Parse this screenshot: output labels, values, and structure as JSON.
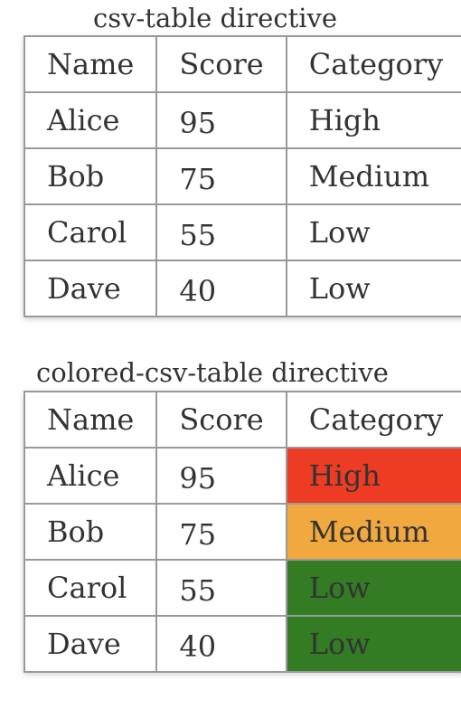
{
  "sections": [
    {
      "caption": "csv-table directive",
      "headers": [
        "Name",
        "Score",
        "Category"
      ],
      "rows": [
        {
          "name": "Alice",
          "score": "95",
          "category": "High"
        },
        {
          "name": "Bob",
          "score": "75",
          "category": "Medium"
        },
        {
          "name": "Carol",
          "score": "55",
          "category": "Low"
        },
        {
          "name": "Dave",
          "score": "40",
          "category": "Low"
        }
      ]
    },
    {
      "caption": "colored-csv-table directive",
      "headers": [
        "Name",
        "Score",
        "Category"
      ],
      "rows": [
        {
          "name": "Alice",
          "score": "95",
          "category": "High",
          "color": "#ee3b24"
        },
        {
          "name": "Bob",
          "score": "75",
          "category": "Medium",
          "color": "#f1a83f"
        },
        {
          "name": "Carol",
          "score": "55",
          "category": "Low",
          "color": "#337c24"
        },
        {
          "name": "Dave",
          "score": "40",
          "category": "Low",
          "color": "#337c24"
        }
      ]
    }
  ]
}
